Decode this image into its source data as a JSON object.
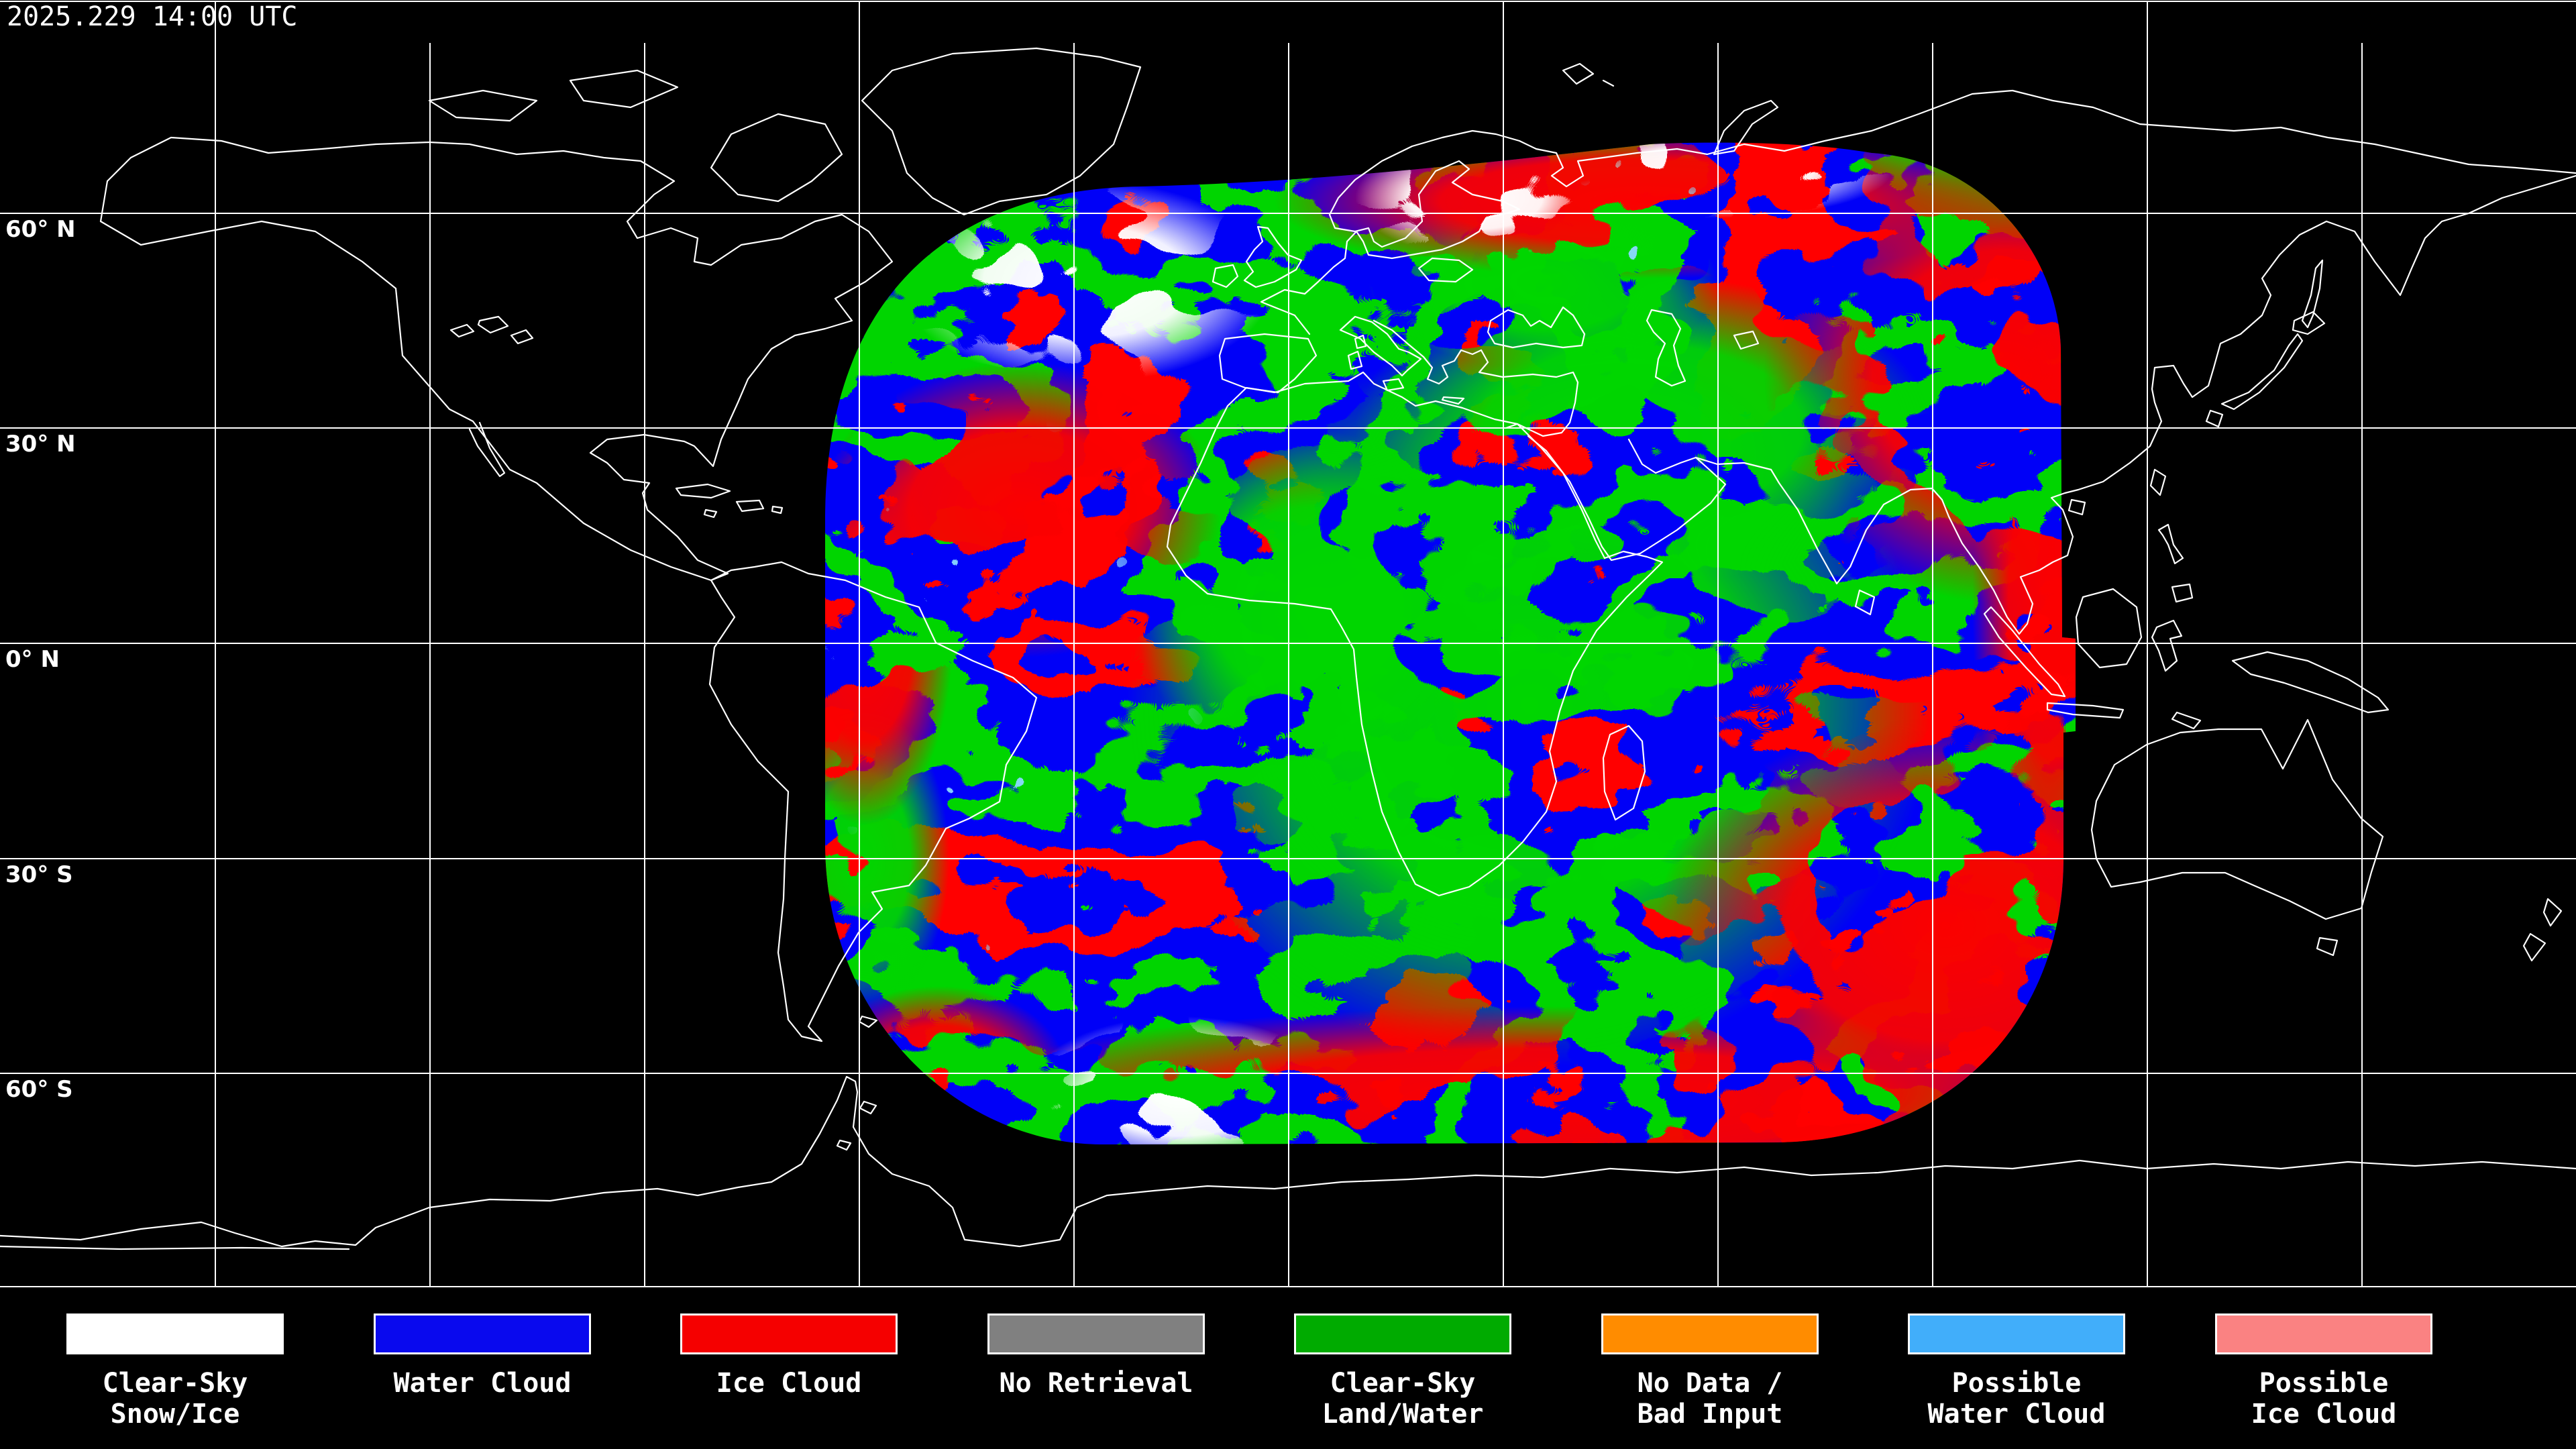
{
  "header": {
    "timestamp": "2025.229 14:00 UTC"
  },
  "map": {
    "latitude_labels": [
      {
        "text": "60° N"
      },
      {
        "text": "30° N"
      },
      {
        "text": "0° N"
      },
      {
        "text": "30° S"
      },
      {
        "text": "60° S"
      }
    ],
    "classification_colors": {
      "clear_sky_snow_ice": "#FFFFFF",
      "water_cloud": "#0909EE",
      "ice_cloud": "#F50000",
      "no_retrieval": "#808080",
      "clear_sky_land_water": "#00AB00",
      "no_data_bad_input": "#FF8C00",
      "possible_water_cloud": "#41AEFA",
      "possible_ice_cloud": "#FA8282",
      "coastline": "#FFFFFF",
      "graticule": "#FFFFFF",
      "background": "#000000"
    }
  },
  "legend": {
    "items": [
      {
        "name": "clear-sky-snow-ice",
        "color": "#FFFFFF",
        "line1": "Clear-Sky",
        "line2": "Snow/Ice"
      },
      {
        "name": "water-cloud",
        "color": "#0909EE",
        "line1": "Water Cloud",
        "line2": ""
      },
      {
        "name": "ice-cloud",
        "color": "#F50000",
        "line1": "Ice Cloud",
        "line2": ""
      },
      {
        "name": "no-retrieval",
        "color": "#808080",
        "line1": "No Retrieval",
        "line2": ""
      },
      {
        "name": "clear-sky-land-water",
        "color": "#00AB00",
        "line1": "Clear-Sky",
        "line2": "Land/Water"
      },
      {
        "name": "no-data-bad-input",
        "color": "#FF8C00",
        "line1": "No Data /",
        "line2": "Bad Input"
      },
      {
        "name": "possible-water-cloud",
        "color": "#41AEFA",
        "line1": "Possible",
        "line2": "Water Cloud"
      },
      {
        "name": "possible-ice-cloud",
        "color": "#FA8282",
        "line1": "Possible",
        "line2": "Ice Cloud"
      }
    ]
  }
}
